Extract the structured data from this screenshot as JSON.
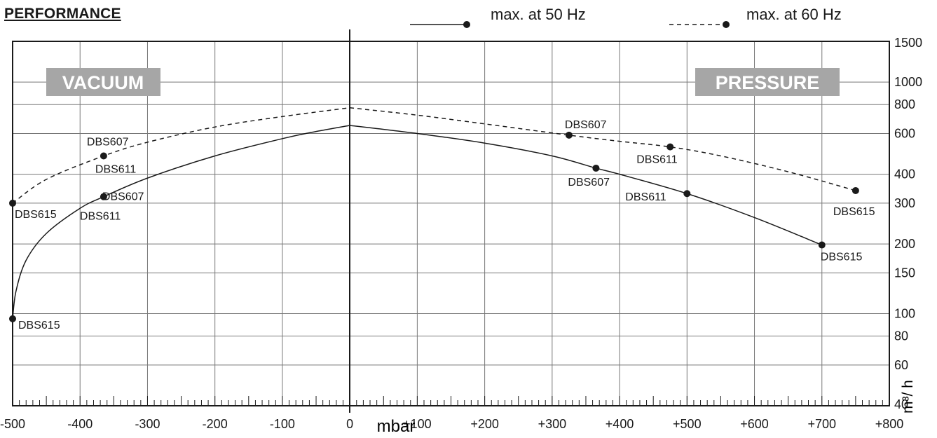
{
  "chart_data": {
    "type": "line",
    "title": "PERFORMANCE",
    "xlabel": "mbar",
    "ylabel": "m³/ h",
    "y_scale": "log",
    "xlim": [
      -500,
      800
    ],
    "ylim": [
      40,
      1500
    ],
    "grid": true,
    "x_ticks": [
      {
        "value": -500,
        "label": "-500"
      },
      {
        "value": -400,
        "label": "-400"
      },
      {
        "value": -300,
        "label": "-300"
      },
      {
        "value": -200,
        "label": "-200"
      },
      {
        "value": -100,
        "label": "-100"
      },
      {
        "value": 0,
        "label": "0"
      },
      {
        "value": 100,
        "label": "+100"
      },
      {
        "value": 200,
        "label": "+200"
      },
      {
        "value": 300,
        "label": "+300"
      },
      {
        "value": 400,
        "label": "+400"
      },
      {
        "value": 500,
        "label": "+500"
      },
      {
        "value": 600,
        "label": "+600"
      },
      {
        "value": 700,
        "label": "+700"
      },
      {
        "value": 800,
        "label": "+800"
      }
    ],
    "y_ticks": [
      {
        "value": 1500,
        "label": "1500"
      },
      {
        "value": 1000,
        "label": "1000"
      },
      {
        "value": 800,
        "label": "800"
      },
      {
        "value": 600,
        "label": "600"
      },
      {
        "value": 400,
        "label": "400"
      },
      {
        "value": 300,
        "label": "300"
      },
      {
        "value": 200,
        "label": "200"
      },
      {
        "value": 150,
        "label": "150"
      },
      {
        "value": 100,
        "label": "100"
      },
      {
        "value": 80,
        "label": "80"
      },
      {
        "value": 60,
        "label": "60"
      },
      {
        "value": 40,
        "label": "40"
      }
    ],
    "regions": {
      "left": "VACUUM",
      "right": "PRESSURE",
      "fill": "#a6a6a6"
    },
    "legend": {
      "placement": "top",
      "entries": [
        {
          "label": "max. at 50 Hz",
          "style": "solid"
        },
        {
          "label": "max. at 60 Hz",
          "style": "dashed"
        }
      ]
    },
    "series": [
      {
        "style": "solid",
        "vacuum_curve": [
          [
            -500,
            95
          ],
          [
            -495,
            125
          ],
          [
            -480,
            170
          ],
          [
            -450,
            222
          ],
          [
            -400,
            285
          ],
          [
            -365,
            320
          ],
          [
            -300,
            385
          ],
          [
            -200,
            480
          ],
          [
            -100,
            570
          ],
          [
            -50,
            612
          ],
          [
            0,
            650
          ]
        ],
        "pressure_curve": [
          [
            0,
            650
          ],
          [
            100,
            600
          ],
          [
            200,
            545
          ],
          [
            300,
            480
          ],
          [
            365,
            425
          ],
          [
            400,
            400
          ],
          [
            500,
            330
          ],
          [
            600,
            260
          ],
          [
            700,
            198
          ]
        ],
        "points": [
          {
            "x": -500,
            "y": 95,
            "labels": [
              "DBS615"
            ]
          },
          {
            "x": -365,
            "y": 320,
            "labels": [
              "DBS607",
              "DBS611"
            ]
          },
          {
            "x": 365,
            "y": 425,
            "labels": [
              "DBS607"
            ]
          },
          {
            "x": 500,
            "y": 330,
            "labels": [
              "DBS611"
            ]
          },
          {
            "x": 700,
            "y": 198,
            "labels": [
              "DBS615"
            ]
          }
        ]
      },
      {
        "style": "dashed",
        "vacuum_curve": [
          [
            -500,
            300
          ],
          [
            -450,
            380
          ],
          [
            -365,
            480
          ],
          [
            -300,
            550
          ],
          [
            -200,
            640
          ],
          [
            -100,
            710
          ],
          [
            0,
            775
          ]
        ],
        "pressure_curve": [
          [
            0,
            775
          ],
          [
            100,
            720
          ],
          [
            200,
            660
          ],
          [
            325,
            590
          ],
          [
            400,
            555
          ],
          [
            475,
            525
          ],
          [
            550,
            480
          ],
          [
            650,
            410
          ],
          [
            750,
            340
          ]
        ],
        "points": [
          {
            "x": -500,
            "y": 300,
            "labels": [
              "DBS615"
            ]
          },
          {
            "x": -365,
            "y": 480,
            "labels": [
              "DBS607",
              "DBS611"
            ]
          },
          {
            "x": 325,
            "y": 590,
            "labels": [
              "DBS607"
            ]
          },
          {
            "x": 475,
            "y": 525,
            "labels": [
              "DBS611"
            ]
          },
          {
            "x": 750,
            "y": 340,
            "labels": [
              "DBS615"
            ]
          }
        ]
      }
    ]
  }
}
